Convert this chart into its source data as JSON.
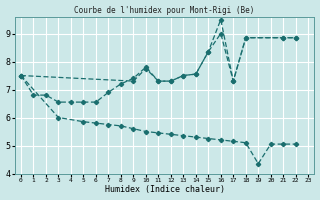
{
  "title": "Courbe de l'humidex pour Mont-Rigi (Be)",
  "xlabel": "Humidex (Indice chaleur)",
  "background_color": "#cce8e8",
  "grid_color": "#b0d0d0",
  "line_color": "#1a6e6e",
  "xlim": [
    -0.5,
    23.5
  ],
  "ylim": [
    4,
    9.6
  ],
  "yticks": [
    4,
    5,
    6,
    7,
    8,
    9
  ],
  "xticks": [
    0,
    1,
    2,
    3,
    4,
    5,
    6,
    7,
    8,
    9,
    10,
    11,
    12,
    13,
    14,
    15,
    16,
    17,
    18,
    19,
    20,
    21,
    22,
    23
  ],
  "series": [
    {
      "x": [
        0,
        1,
        2,
        3,
        4,
        5,
        6,
        7,
        8,
        9,
        10,
        11,
        12,
        13,
        14,
        15,
        16,
        17,
        18,
        21,
        22
      ],
      "y": [
        7.5,
        6.8,
        6.8,
        6.55,
        6.55,
        6.55,
        6.55,
        6.9,
        7.2,
        7.4,
        7.8,
        7.3,
        7.3,
        7.5,
        7.55,
        8.35,
        9.0,
        7.3,
        8.85,
        8.85,
        8.85
      ]
    },
    {
      "x": [
        0,
        9,
        10,
        11,
        12,
        13,
        14,
        15,
        16,
        17,
        18,
        21,
        22
      ],
      "y": [
        7.5,
        7.3,
        7.75,
        7.3,
        7.3,
        7.5,
        7.55,
        8.35,
        9.5,
        7.3,
        8.85,
        8.85,
        8.85
      ]
    },
    {
      "x": [
        0,
        3,
        5,
        6,
        7,
        8,
        9,
        10,
        11,
        12,
        13,
        14,
        15,
        16,
        17,
        18,
        19,
        20,
        21,
        22
      ],
      "y": [
        7.5,
        6.0,
        5.85,
        5.8,
        5.75,
        5.7,
        5.6,
        5.5,
        5.45,
        5.4,
        5.35,
        5.3,
        5.25,
        5.2,
        5.15,
        5.1,
        4.35,
        5.05,
        5.05,
        5.05
      ]
    }
  ]
}
